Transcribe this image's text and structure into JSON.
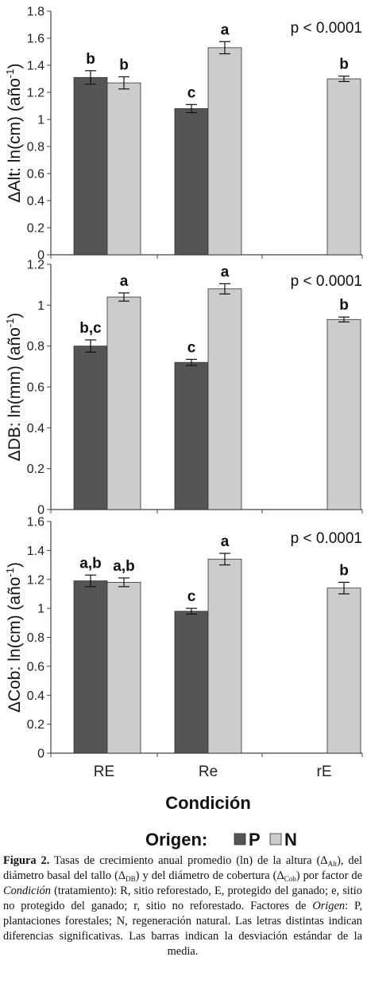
{
  "chart_data": [
    {
      "type": "bar",
      "categories": [
        "RE",
        "Re",
        "rE"
      ],
      "ylabel_prefix": "ΔAlt:",
      "ylabel_unit": "ln(cm)",
      "ylabel_rate": "(año",
      "ylabel_sup": "-1",
      "ylabel_close": ")",
      "ylim": [
        0,
        1.8
      ],
      "yticks": [
        "0",
        "0.2",
        "0.4",
        "0.6",
        "0.8",
        "1",
        "1.2",
        "1.4",
        "1.6",
        "1.8"
      ],
      "pvalue": "p < 0.0001",
      "series": [
        {
          "name": "P",
          "color": "#555555",
          "values": [
            1.31,
            1.08,
            null
          ],
          "errors": [
            0.05,
            0.03,
            null
          ],
          "labels": [
            "b",
            "c",
            ""
          ]
        },
        {
          "name": "N",
          "color": "#cccccc",
          "values": [
            1.27,
            1.53,
            1.3
          ],
          "errors": [
            0.045,
            0.045,
            0.02
          ],
          "labels": [
            "b",
            "a",
            "b"
          ]
        }
      ]
    },
    {
      "type": "bar",
      "categories": [
        "RE",
        "Re",
        "rE"
      ],
      "ylabel_prefix": "ΔDB:",
      "ylabel_unit": "ln(mm)",
      "ylabel_rate": "(año",
      "ylabel_sup": "-1",
      "ylabel_close": ")",
      "ylim": [
        0,
        1.2
      ],
      "yticks": [
        "0",
        "0.2",
        "0.4",
        "0.6",
        "0.8",
        "1",
        "1.2"
      ],
      "pvalue": "p < 0.0001",
      "series": [
        {
          "name": "P",
          "color": "#555555",
          "values": [
            0.8,
            0.72,
            null
          ],
          "errors": [
            0.03,
            0.015,
            null
          ],
          "labels": [
            "b,c",
            "c",
            ""
          ]
        },
        {
          "name": "N",
          "color": "#cccccc",
          "values": [
            1.04,
            1.08,
            0.93
          ],
          "errors": [
            0.02,
            0.025,
            0.012
          ],
          "labels": [
            "a",
            "a",
            "b"
          ]
        }
      ]
    },
    {
      "type": "bar",
      "categories": [
        "RE",
        "Re",
        "rE"
      ],
      "ylabel_prefix": "ΔCob:",
      "ylabel_unit": "ln(cm)",
      "ylabel_rate": "(año",
      "ylabel_sup": "-1",
      "ylabel_close": ")",
      "ylim": [
        0,
        1.6
      ],
      "yticks": [
        "0",
        "0.2",
        "0.4",
        "0.6",
        "0.8",
        "1",
        "1.2",
        "1.4",
        "1.6"
      ],
      "pvalue": "p < 0.0001",
      "series": [
        {
          "name": "P",
          "color": "#555555",
          "values": [
            1.19,
            0.98,
            null
          ],
          "errors": [
            0.04,
            0.02,
            null
          ],
          "labels": [
            "a,b",
            "c",
            ""
          ]
        },
        {
          "name": "N",
          "color": "#cccccc",
          "values": [
            1.18,
            1.34,
            1.14
          ],
          "errors": [
            0.03,
            0.04,
            0.04
          ],
          "labels": [
            "a,b",
            "a",
            "b"
          ]
        }
      ]
    }
  ],
  "xtitle": "Condición",
  "legend": {
    "title": "Origen:",
    "items": [
      {
        "name": "P",
        "color": "#555555"
      },
      {
        "name": "N",
        "color": "#cccccc"
      }
    ]
  },
  "caption": {
    "label": "Figura 2.",
    "t1": " Tasas de crecimiento anual promedio (ln) de la altura (Δ",
    "s1": "Alt",
    "t2": "), del diámetro basal del tallo (Δ",
    "s2": "DB",
    "t3": ") y del diámetro de cobertura (Δ",
    "s3": "Cob",
    "t4": ") por factor de ",
    "i1": "Condición",
    "t5": " (tratamiento): R, sitio reforestado, E, protegido del ganado; e, sitio no protegido del ganado; r, sitio no reforestado. Factores de ",
    "i2": "Origen",
    "t6": ": P, plantaciones forestales; N, regeneración natural. Las letras distintas indican diferencias significativas. Las barras indican la desviación estándar de la media."
  }
}
